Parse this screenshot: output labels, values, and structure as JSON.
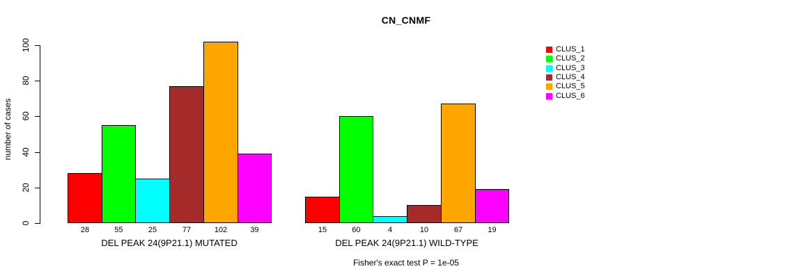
{
  "chart_data": {
    "type": "bar",
    "title": "CN_CNMF",
    "ylabel": "number of cases",
    "xlabel": "",
    "ylim": [
      0,
      100
    ],
    "y_ticks": [
      0,
      20,
      40,
      60,
      80,
      100
    ],
    "grid": false,
    "legend_position": "right",
    "series_labels": [
      "CLUS_1",
      "CLUS_2",
      "CLUS_3",
      "CLUS_4",
      "CLUS_5",
      "CLUS_6"
    ],
    "series_colors": [
      "#ff0000",
      "#00ff00",
      "#00ffff",
      "#a52a2a",
      "#ffa500",
      "#ff00ff"
    ],
    "groups": [
      {
        "label": "DEL PEAK 24(9P21.1) MUTATED",
        "values": [
          28,
          55,
          25,
          77,
          102,
          39
        ]
      },
      {
        "label": "DEL PEAK 24(9P21.1) WILD-TYPE",
        "values": [
          15,
          60,
          4,
          10,
          67,
          19
        ]
      }
    ],
    "bar_value_labels_shown": true,
    "annotation": "Fisher's exact test P = 1e-05"
  },
  "colors": {
    "axis": "#000000",
    "text": "#000000",
    "background": "#ffffff"
  }
}
